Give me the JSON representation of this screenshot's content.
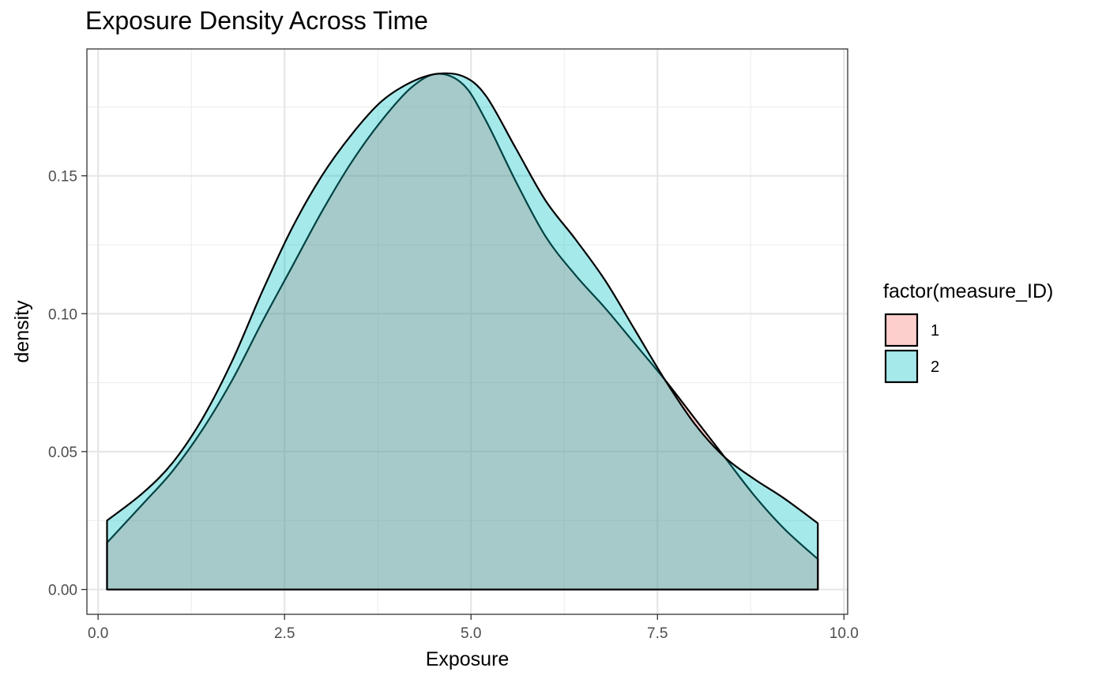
{
  "title": "Exposure Density Across Time",
  "chart_data": {
    "type": "area",
    "title": "Exposure Density Across Time",
    "xlabel": "Exposure",
    "ylabel": "density",
    "xlim": [
      -0.15,
      10.05
    ],
    "ylim": [
      -0.009,
      0.196
    ],
    "x_ticks": [
      0.0,
      2.5,
      5.0,
      7.5,
      10.0
    ],
    "x_tick_labels": [
      "0.0",
      "2.5",
      "5.0",
      "7.5",
      "10.0"
    ],
    "y_ticks": [
      0.0,
      0.05,
      0.1,
      0.15
    ],
    "y_tick_labels": [
      "0.00",
      "0.05",
      "0.10",
      "0.15"
    ],
    "grid": true,
    "legend": {
      "title": "factor(measure_ID)",
      "position": "right"
    },
    "series": [
      {
        "name": "1",
        "color": "#F8766D",
        "x": [
          0.12,
          0.6,
          1.0,
          1.4,
          1.8,
          2.2,
          2.6,
          3.0,
          3.4,
          3.8,
          4.2,
          4.55,
          4.9,
          5.2,
          5.6,
          6.0,
          6.4,
          6.8,
          7.2,
          7.6,
          8.0,
          8.4,
          8.8,
          9.2,
          9.65
        ],
        "y": [
          0.017,
          0.031,
          0.043,
          0.058,
          0.076,
          0.097,
          0.117,
          0.137,
          0.155,
          0.17,
          0.182,
          0.187,
          0.183,
          0.17,
          0.148,
          0.128,
          0.114,
          0.102,
          0.089,
          0.076,
          0.062,
          0.048,
          0.034,
          0.022,
          0.011
        ]
      },
      {
        "name": "2",
        "color": "#00BFC4",
        "x": [
          0.12,
          0.6,
          1.0,
          1.4,
          1.8,
          2.2,
          2.6,
          3.0,
          3.4,
          3.8,
          4.2,
          4.55,
          4.9,
          5.2,
          5.6,
          6.0,
          6.4,
          6.8,
          7.2,
          7.6,
          8.0,
          8.4,
          8.8,
          9.2,
          9.65
        ],
        "y": [
          0.025,
          0.035,
          0.046,
          0.062,
          0.083,
          0.108,
          0.131,
          0.15,
          0.165,
          0.177,
          0.184,
          0.187,
          0.186,
          0.179,
          0.16,
          0.141,
          0.127,
          0.112,
          0.094,
          0.076,
          0.06,
          0.048,
          0.04,
          0.033,
          0.024
        ]
      }
    ]
  }
}
